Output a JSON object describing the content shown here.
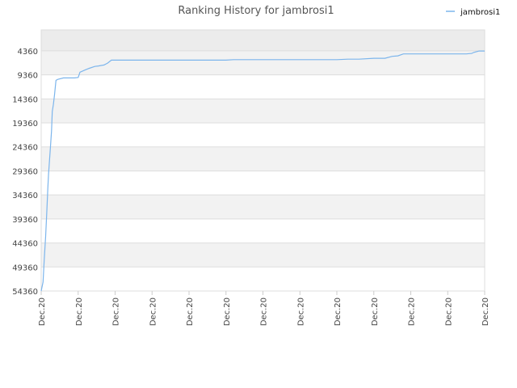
{
  "chart_data": {
    "type": "line",
    "title": "Ranking History for jambrosi1",
    "xlabel": "",
    "ylabel": "",
    "y_reversed": true,
    "y_ticks": [
      4360,
      9360,
      14360,
      19360,
      24360,
      29360,
      34360,
      39360,
      44360,
      49360,
      54360
    ],
    "ylim": [
      54360,
      0
    ],
    "x_tick_labels": [
      "Dec.20",
      "Dec.20",
      "Dec.20",
      "Dec.20",
      "Dec.20",
      "Dec.20",
      "Dec.20",
      "Dec.20",
      "Dec.20",
      "Dec.20",
      "Dec.20",
      "Dec.20",
      "Dec.20"
    ],
    "x_range": [
      0,
      12
    ],
    "legend": {
      "position": "top-right"
    },
    "grid": true,
    "colors": {
      "line": "#7cb5ec",
      "band": "#f2f2f2",
      "band_top": "#ececec",
      "grid": "#dddddd"
    },
    "series": [
      {
        "name": "jambrosi1",
        "x": [
          0.0,
          0.05,
          0.08,
          0.12,
          0.15,
          0.18,
          0.2,
          0.25,
          0.28,
          0.3,
          0.33,
          0.36,
          0.38,
          0.4,
          0.45,
          0.6,
          0.9,
          1.0,
          1.05,
          1.2,
          1.3,
          1.45,
          1.55,
          1.7,
          1.8,
          1.9,
          2.0,
          3.0,
          4.0,
          5.0,
          5.2,
          6.0,
          7.0,
          8.0,
          8.3,
          8.6,
          9.0,
          9.3,
          9.5,
          9.65,
          9.8,
          10.0,
          11.0,
          11.5,
          11.65,
          11.7,
          11.85,
          12.0
        ],
        "y": [
          54360,
          52500,
          48000,
          43000,
          38000,
          33000,
          30000,
          24500,
          21000,
          17000,
          15500,
          13500,
          12000,
          10500,
          10300,
          10000,
          10000,
          9900,
          8800,
          8300,
          8000,
          7600,
          7500,
          7300,
          6900,
          6300,
          6300,
          6300,
          6300,
          6300,
          6200,
          6200,
          6200,
          6200,
          6100,
          6100,
          5900,
          5900,
          5500,
          5400,
          5000,
          5000,
          5000,
          5000,
          4900,
          4700,
          4400,
          4400
        ]
      }
    ]
  }
}
